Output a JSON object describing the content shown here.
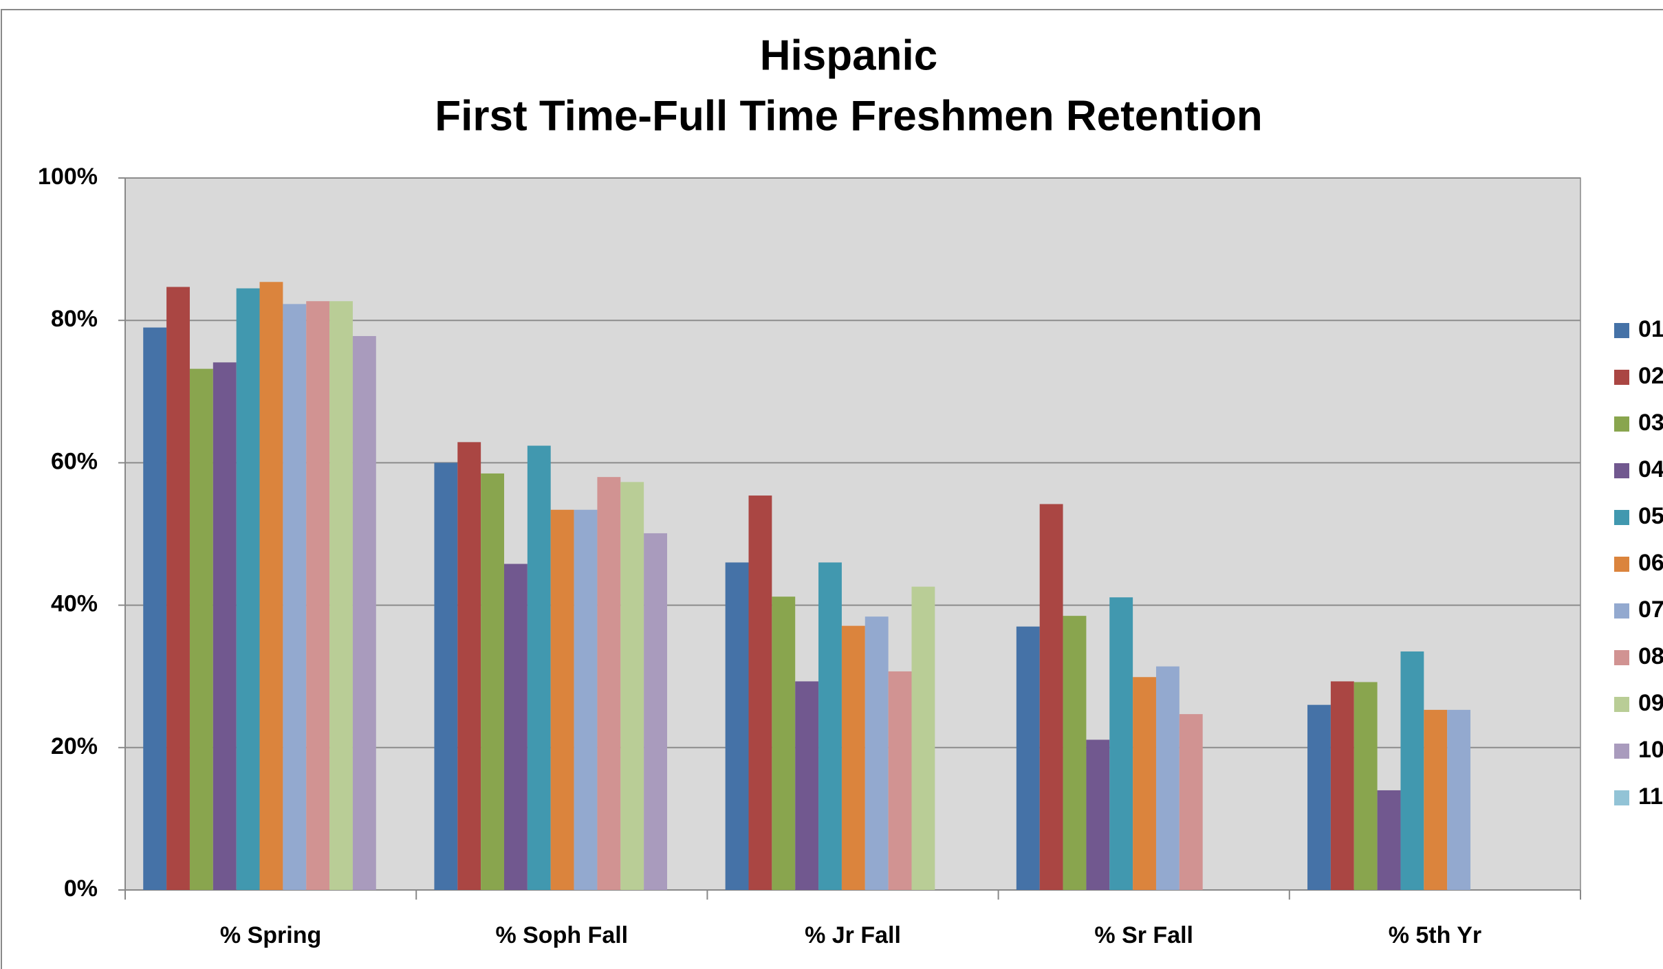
{
  "chart_data": {
    "type": "bar",
    "title": "Hispanic",
    "subtitle": "First Time-Full Time Freshmen Retention",
    "categories": [
      "% Spring",
      "% Soph Fall",
      "% Jr Fall",
      "% Sr Fall",
      "% 5th Yr"
    ],
    "series": [
      {
        "name": "01",
        "color": "#4572a7",
        "values": [
          79,
          60,
          46,
          37,
          26
        ]
      },
      {
        "name": "02",
        "color": "#aa4643",
        "values": [
          84.7,
          62.9,
          55.4,
          54.2,
          29.3
        ]
      },
      {
        "name": "03",
        "color": "#89a54e",
        "values": [
          73.2,
          58.5,
          41.2,
          38.5,
          29.2
        ]
      },
      {
        "name": "04",
        "color": "#71588f",
        "values": [
          74.1,
          45.8,
          29.3,
          21.1,
          14
        ]
      },
      {
        "name": "05",
        "color": "#4198af",
        "values": [
          84.5,
          62.4,
          46,
          41.1,
          33.5
        ]
      },
      {
        "name": "06",
        "color": "#db843d",
        "values": [
          85.4,
          53.4,
          37.1,
          29.9,
          25.3
        ]
      },
      {
        "name": "07",
        "color": "#93a9cf",
        "values": [
          82.3,
          53.4,
          38.4,
          31.4,
          25.3
        ]
      },
      {
        "name": "08",
        "color": "#d19392",
        "values": [
          82.7,
          58,
          30.7,
          24.7,
          null
        ]
      },
      {
        "name": "09",
        "color": "#b9cd96",
        "values": [
          82.7,
          57.3,
          42.6,
          null,
          null
        ]
      },
      {
        "name": "10",
        "color": "#a99bbd",
        "values": [
          77.8,
          50.1,
          null,
          null,
          null
        ]
      },
      {
        "name": "11",
        "color": "#92c3d6",
        "values": [
          null,
          null,
          null,
          null,
          null
        ]
      }
    ],
    "ylim": [
      0,
      100
    ],
    "yticks": [
      {
        "value": 0,
        "label": "0%"
      },
      {
        "value": 20,
        "label": "20%"
      },
      {
        "value": 40,
        "label": "40%"
      },
      {
        "value": 60,
        "label": "60%"
      },
      {
        "value": 80,
        "label": "80%"
      },
      {
        "value": 100,
        "label": "100%"
      }
    ],
    "grid": true,
    "legend": "right"
  }
}
